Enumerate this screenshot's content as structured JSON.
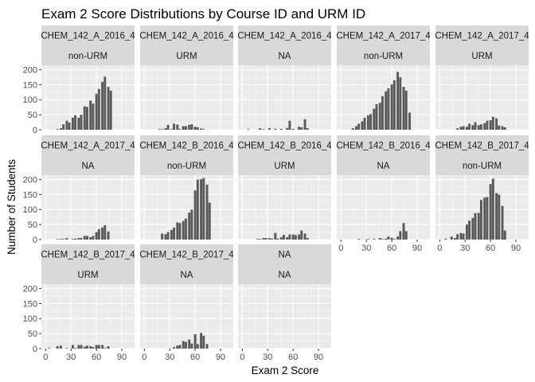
{
  "chart_data": {
    "type": "bar",
    "title": "Exam 2 Score Distributions by Course ID and URM ID",
    "xlabel": "Exam 2 Score",
    "ylabel": "Number of Students",
    "xlim": [
      -5,
      105
    ],
    "ylim": [
      0,
      215
    ],
    "x_ticks": [
      0,
      30,
      60,
      90
    ],
    "y_ticks": [
      0,
      50,
      100,
      150,
      200
    ],
    "bin_width": 3.5,
    "grid": true,
    "legend": "none",
    "facets": [
      {
        "course": "CHEM_142_A_2016_4",
        "urm": "non-URM",
        "bins": [
          [
            14,
            2
          ],
          [
            18,
            5
          ],
          [
            21,
            18
          ],
          [
            25,
            30
          ],
          [
            28,
            24
          ],
          [
            32,
            40
          ],
          [
            35,
            48
          ],
          [
            39,
            40
          ],
          [
            42,
            50
          ],
          [
            46,
            78
          ],
          [
            49,
            76
          ],
          [
            53,
            97
          ],
          [
            56,
            87
          ],
          [
            60,
            120
          ],
          [
            63,
            136
          ],
          [
            67,
            160
          ],
          [
            70,
            177
          ],
          [
            74,
            143
          ],
          [
            77,
            130
          ]
        ]
      },
      {
        "course": "CHEM_142_A_2016_4",
        "urm": "URM",
        "bins": [
          [
            18,
            2
          ],
          [
            21,
            2
          ],
          [
            25,
            5
          ],
          [
            28,
            16
          ],
          [
            32,
            2
          ],
          [
            35,
            20
          ],
          [
            39,
            17
          ],
          [
            42,
            3
          ],
          [
            46,
            12
          ],
          [
            49,
            12
          ],
          [
            53,
            16
          ],
          [
            56,
            18
          ],
          [
            60,
            10
          ],
          [
            63,
            8
          ],
          [
            67,
            4
          ],
          [
            70,
            2
          ]
        ]
      },
      {
        "course": "CHEM_142_A_2016_4",
        "urm": "NA",
        "bins": [
          [
            7,
            2
          ],
          [
            21,
            5
          ],
          [
            25,
            2
          ],
          [
            32,
            5
          ],
          [
            39,
            3
          ],
          [
            46,
            3
          ],
          [
            53,
            6
          ],
          [
            56,
            30
          ],
          [
            60,
            3
          ],
          [
            67,
            10
          ],
          [
            70,
            8
          ],
          [
            74,
            35
          ],
          [
            77,
            5
          ]
        ]
      },
      {
        "course": "CHEM_142_A_2017_4",
        "urm": "non-URM",
        "bins": [
          [
            14,
            5
          ],
          [
            18,
            12
          ],
          [
            21,
            20
          ],
          [
            25,
            28
          ],
          [
            28,
            40
          ],
          [
            32,
            48
          ],
          [
            35,
            52
          ],
          [
            39,
            70
          ],
          [
            42,
            85
          ],
          [
            46,
            90
          ],
          [
            49,
            112
          ],
          [
            53,
            128
          ],
          [
            56,
            138
          ],
          [
            60,
            151
          ],
          [
            63,
            165
          ],
          [
            67,
            193
          ],
          [
            70,
            175
          ],
          [
            74,
            143
          ],
          [
            77,
            130
          ],
          [
            81,
            57
          ]
        ]
      },
      {
        "course": "CHEM_142_A_2017_4",
        "urm": "URM",
        "bins": [
          [
            21,
            5
          ],
          [
            25,
            10
          ],
          [
            28,
            12
          ],
          [
            32,
            10
          ],
          [
            35,
            20
          ],
          [
            39,
            15
          ],
          [
            42,
            25
          ],
          [
            46,
            15
          ],
          [
            49,
            18
          ],
          [
            53,
            22
          ],
          [
            56,
            30
          ],
          [
            60,
            32
          ],
          [
            63,
            43
          ],
          [
            67,
            38
          ],
          [
            70,
            14
          ],
          [
            74,
            12
          ],
          [
            77,
            8
          ]
        ]
      },
      {
        "course": "CHEM_142_A_2017_4",
        "urm": "NA",
        "bins": [
          [
            14,
            2
          ],
          [
            18,
            2
          ],
          [
            21,
            2
          ],
          [
            25,
            5
          ],
          [
            32,
            2
          ],
          [
            35,
            3
          ],
          [
            39,
            5
          ],
          [
            42,
            5
          ],
          [
            46,
            12
          ],
          [
            49,
            12
          ],
          [
            53,
            8
          ],
          [
            56,
            12
          ],
          [
            60,
            25
          ],
          [
            63,
            35
          ],
          [
            67,
            40
          ],
          [
            70,
            48
          ],
          [
            74,
            27
          ]
        ]
      },
      {
        "course": "CHEM_142_B_2016_4",
        "urm": "non-URM",
        "bins": [
          [
            21,
            20
          ],
          [
            25,
            18
          ],
          [
            28,
            25
          ],
          [
            32,
            32
          ],
          [
            35,
            40
          ],
          [
            39,
            57
          ],
          [
            42,
            55
          ],
          [
            46,
            62
          ],
          [
            49,
            70
          ],
          [
            53,
            90
          ],
          [
            56,
            100
          ],
          [
            60,
            164
          ],
          [
            63,
            200
          ],
          [
            67,
            201
          ],
          [
            70,
            205
          ],
          [
            74,
            183
          ],
          [
            77,
            123
          ]
        ]
      },
      {
        "course": "CHEM_142_B_2016_4",
        "urm": "URM",
        "bins": [
          [
            18,
            2
          ],
          [
            21,
            2
          ],
          [
            25,
            5
          ],
          [
            28,
            5
          ],
          [
            32,
            5
          ],
          [
            35,
            3
          ],
          [
            39,
            22
          ],
          [
            42,
            3
          ],
          [
            46,
            8
          ],
          [
            49,
            16
          ],
          [
            53,
            8
          ],
          [
            56,
            17
          ],
          [
            60,
            17
          ],
          [
            63,
            15
          ],
          [
            67,
            17
          ],
          [
            70,
            30
          ],
          [
            74,
            20
          ],
          [
            77,
            5
          ]
        ]
      },
      {
        "course": "CHEM_142_B_2016_4",
        "urm": "NA",
        "bins": [
          [
            21,
            2
          ],
          [
            32,
            2
          ],
          [
            39,
            2
          ],
          [
            46,
            5
          ],
          [
            49,
            2
          ],
          [
            53,
            3
          ],
          [
            56,
            10
          ],
          [
            60,
            6
          ],
          [
            63,
            2
          ],
          [
            67,
            10
          ],
          [
            70,
            28
          ],
          [
            74,
            55
          ],
          [
            77,
            28
          ]
        ]
      },
      {
        "course": "CHEM_142_B_2017_4",
        "urm": "non-URM",
        "bins": [
          [
            7,
            3
          ],
          [
            14,
            10
          ],
          [
            18,
            5
          ],
          [
            21,
            18
          ],
          [
            25,
            22
          ],
          [
            28,
            20
          ],
          [
            32,
            50
          ],
          [
            35,
            63
          ],
          [
            39,
            72
          ],
          [
            42,
            88
          ],
          [
            46,
            89
          ],
          [
            49,
            132
          ],
          [
            53,
            140
          ],
          [
            56,
            142
          ],
          [
            60,
            185
          ],
          [
            63,
            203
          ],
          [
            67,
            155
          ],
          [
            70,
            150
          ],
          [
            74,
            112
          ],
          [
            77,
            30
          ]
        ]
      },
      {
        "course": "CHEM_142_B_2017_4",
        "urm": "URM",
        "bins": [
          [
            4,
            2
          ],
          [
            14,
            8
          ],
          [
            18,
            10
          ],
          [
            25,
            2
          ],
          [
            32,
            12
          ],
          [
            35,
            2
          ],
          [
            39,
            12
          ],
          [
            42,
            12
          ],
          [
            46,
            6
          ],
          [
            49,
            10
          ],
          [
            53,
            8
          ],
          [
            56,
            5
          ],
          [
            60,
            12
          ],
          [
            63,
            12
          ],
          [
            67,
            12
          ],
          [
            70,
            2
          ],
          [
            74,
            8
          ]
        ]
      },
      {
        "course": "CHEM_142_B_2017_4",
        "urm": "NA",
        "bins": [
          [
            35,
            5
          ],
          [
            39,
            10
          ],
          [
            42,
            12
          ],
          [
            46,
            25
          ],
          [
            49,
            22
          ],
          [
            53,
            30
          ],
          [
            56,
            17
          ],
          [
            60,
            48
          ],
          [
            63,
            15
          ],
          [
            67,
            52
          ],
          [
            70,
            43
          ],
          [
            74,
            15
          ]
        ]
      },
      {
        "course": "NA",
        "urm": "NA",
        "bins": []
      }
    ]
  }
}
